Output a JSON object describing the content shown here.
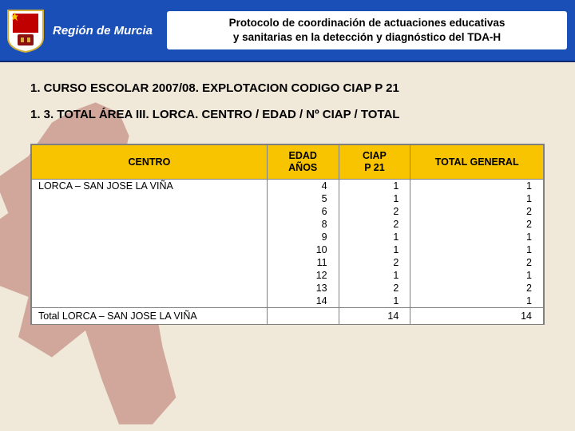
{
  "header": {
    "region_label": "Región de Murcia",
    "title_line1": "Protocolo de coordinación de actuaciones educativas",
    "title_line2": "y sanitarias en la detección y diagnóstico del TDA-H",
    "band_color": "#1a4fb8",
    "title_bg": "#ffffff"
  },
  "headings": {
    "h1": "1. CURSO ESCOLAR 2007/08. EXPLOTACION CODIGO CIAP P 21",
    "h2": "1. 3. TOTAL ÁREA III. LORCA. CENTRO / EDAD / Nº CIAP / TOTAL"
  },
  "table": {
    "header_bg": "#f8c400",
    "border_color": "#808080",
    "columns": [
      "CENTRO",
      "EDAD AÑOS",
      "CIAP P 21",
      "TOTAL GENERAL"
    ],
    "centro_name": "LORCA – SAN JOSE LA VIÑA",
    "rows": [
      {
        "edad": "4",
        "ciap": "1",
        "total": "1"
      },
      {
        "edad": "5",
        "ciap": "1",
        "total": "1"
      },
      {
        "edad": "6",
        "ciap": "2",
        "total": "2"
      },
      {
        "edad": "8",
        "ciap": "2",
        "total": "2"
      },
      {
        "edad": "9",
        "ciap": "1",
        "total": "1"
      },
      {
        "edad": "10",
        "ciap": "1",
        "total": "1"
      },
      {
        "edad": "11",
        "ciap": "2",
        "total": "2"
      },
      {
        "edad": "12",
        "ciap": "1",
        "total": "1"
      },
      {
        "edad": "13",
        "ciap": "2",
        "total": "2"
      },
      {
        "edad": "14",
        "ciap": "1",
        "total": "1"
      }
    ],
    "total_row": {
      "label": "Total LORCA – SAN JOSE LA VIÑA",
      "ciap": "14",
      "total": "14"
    }
  },
  "style": {
    "page_bg": "#f0e8d8",
    "silhouette_color": "#8c1010",
    "silhouette_opacity": 0.3,
    "font_family": "Arial",
    "heading_fontsize_pt": 11,
    "table_fontsize_pt": 9
  }
}
